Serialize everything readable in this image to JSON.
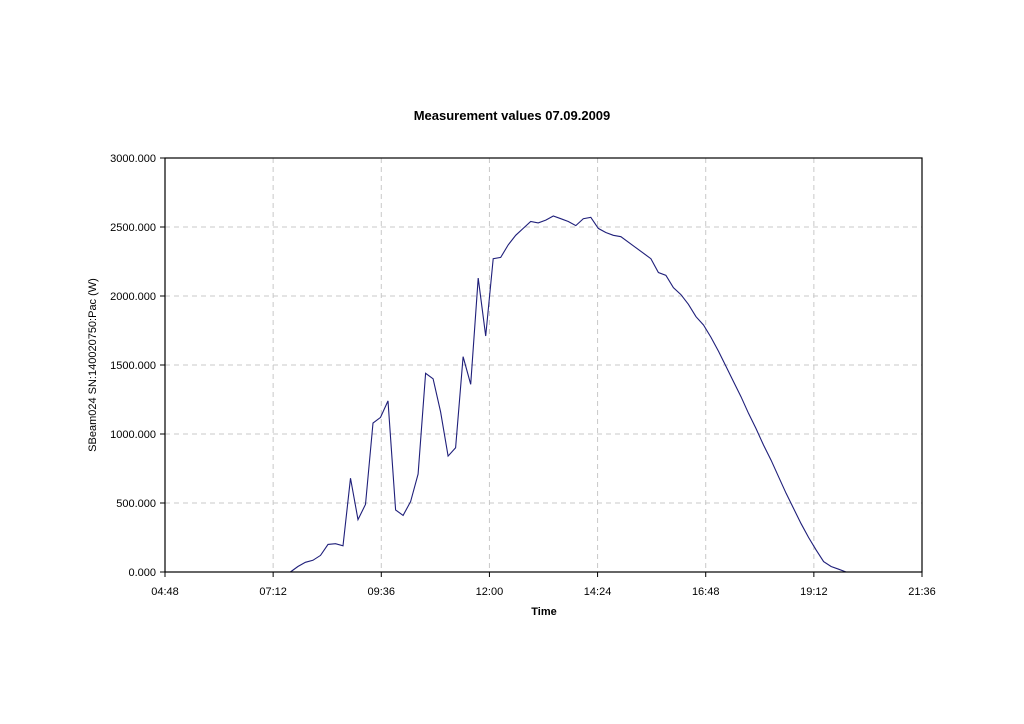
{
  "chart_data": {
    "type": "line",
    "title": "Measurement values 07.09.2009",
    "xlabel": "Time",
    "ylabel": "SBeam024 SN:140020750:Pac (W)",
    "xlim": [
      "04:48",
      "21:36"
    ],
    "ylim": [
      0,
      3000
    ],
    "x_ticks": [
      "04:48",
      "07:12",
      "09:36",
      "12:00",
      "14:24",
      "16:48",
      "19:12",
      "21:36"
    ],
    "y_ticks": [
      "0.000",
      "500.000",
      "1000.000",
      "1500.000",
      "2000.000",
      "2500.000",
      "3000.000"
    ],
    "grid": true,
    "legend": "none",
    "line_color": "#1f1f7a",
    "series": [
      {
        "x": [
          "07:35",
          "07:45",
          "07:55",
          "08:05",
          "08:15",
          "08:25",
          "08:35",
          "08:45",
          "08:55",
          "09:05",
          "09:15",
          "09:25",
          "09:35",
          "09:45",
          "09:55",
          "10:05",
          "10:15",
          "10:25",
          "10:35",
          "10:45",
          "10:55",
          "11:05",
          "11:15",
          "11:25",
          "11:35",
          "11:45",
          "11:55",
          "12:05",
          "12:15",
          "12:25",
          "12:35",
          "12:45",
          "12:55",
          "13:05",
          "13:15",
          "13:25",
          "13:35",
          "13:45",
          "13:55",
          "14:05",
          "14:15",
          "14:25",
          "14:35",
          "14:45",
          "14:55",
          "15:05",
          "15:15",
          "15:25",
          "15:35",
          "15:45",
          "15:55",
          "16:05",
          "16:15",
          "16:25",
          "16:35",
          "16:45",
          "16:55",
          "17:05",
          "17:15",
          "17:25",
          "17:35",
          "17:45",
          "17:55",
          "18:05",
          "18:15",
          "18:25",
          "18:35",
          "18:45",
          "18:55",
          "19:05",
          "19:15",
          "19:25",
          "19:35",
          "19:45",
          "19:55",
          "20:05"
        ],
        "values": [
          0,
          40,
          70,
          85,
          120,
          200,
          205,
          190,
          680,
          380,
          490,
          1080,
          1120,
          1240,
          450,
          410,
          510,
          710,
          1440,
          1400,
          1160,
          840,
          900,
          1560,
          1360,
          2130,
          1710,
          2270,
          2280,
          2370,
          2440,
          2490,
          2540,
          2530,
          2550,
          2580,
          2560,
          2540,
          2510,
          2560,
          2570,
          2490,
          2460,
          2440,
          2430,
          2390,
          2350,
          2310,
          2270,
          2170,
          2150,
          2060,
          2010,
          1940,
          1850,
          1790,
          1700,
          1600,
          1490,
          1380,
          1270,
          1150,
          1040,
          920,
          810,
          690,
          570,
          460,
          350,
          250,
          160,
          75,
          40,
          20,
          0,
          0
        ]
      }
    ]
  }
}
